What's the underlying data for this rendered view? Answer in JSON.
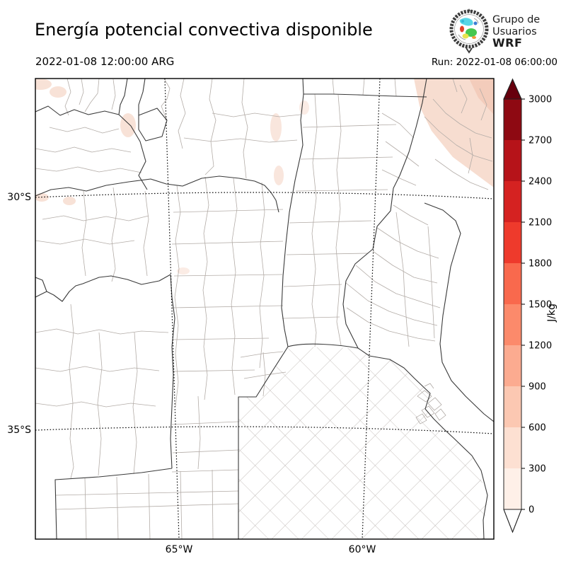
{
  "header": {
    "title": "Energía potencial convectiva disponible",
    "valid_time": "2022-01-08 12:00:00 ARG",
    "run_label": "Run: 2022-01-08 06:00:00",
    "logo": {
      "line1": "Grupo de",
      "line2": "Usuarios",
      "line3": "WRF"
    }
  },
  "axes": {
    "lat": [
      "30°S",
      "35°S"
    ],
    "lon": [
      "65°W",
      "60°W"
    ]
  },
  "colorbar": {
    "unit": "J/kg",
    "ticks": [
      0,
      300,
      600,
      900,
      1200,
      1500,
      1800,
      2100,
      2400,
      2700,
      3000
    ],
    "segment_colors": [
      "#fef0e8",
      "#fde0d2",
      "#fcc8b2",
      "#fcab90",
      "#fc8a6b",
      "#f9694d",
      "#ee3a2c",
      "#d52221",
      "#b61319",
      "#8e0912"
    ],
    "over_color": "#67000d",
    "under_color": "#ffffff"
  },
  "chart_data": {
    "type": "map",
    "title": "Energía potencial convectiva disponible",
    "variable": "CAPE",
    "unit": "J/kg",
    "valid_time": "2022-01-08 12:00:00 ARG",
    "run": "2022-01-08 06:00:00",
    "colorbar_levels": [
      0,
      300,
      600,
      900,
      1200,
      1500,
      1800,
      2100,
      2400,
      2700,
      3000
    ],
    "colorbar_extend": "both",
    "gridlines": {
      "lat": [
        "30°S",
        "35°S"
      ],
      "lon": [
        "65°W",
        "60°W"
      ],
      "style": "dotted"
    },
    "shaded_regions": [
      {
        "area": "northeast corner of domain",
        "value_range": [
          0,
          600
        ]
      },
      {
        "area": "small patches along northwest edge",
        "value_range": [
          0,
          300
        ]
      },
      {
        "area": "remainder of domain",
        "value_range": [
          0,
          0
        ]
      }
    ]
  }
}
